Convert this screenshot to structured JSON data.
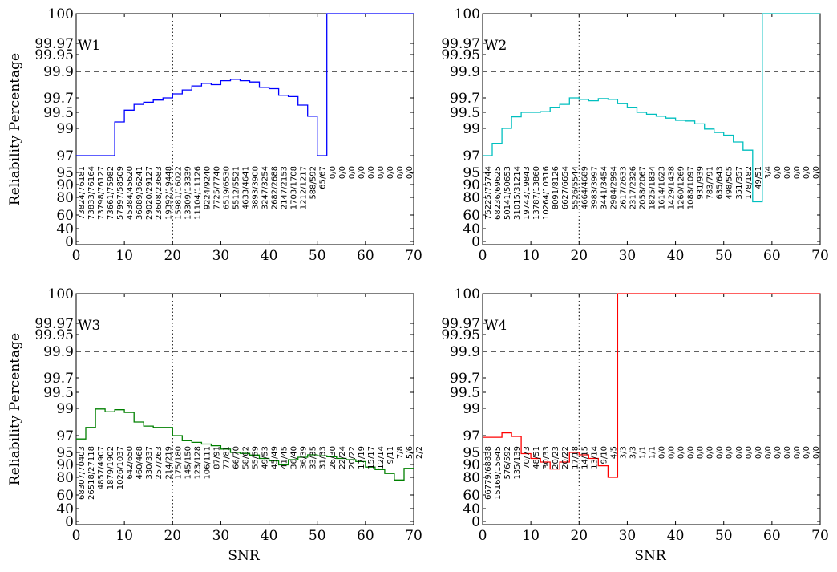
{
  "figure": {
    "ylabel": "Reliability Percentage",
    "xlabel": "SNR"
  },
  "chart_data": [
    {
      "type": "line",
      "step": true,
      "title": "W1",
      "color": "#0000ff",
      "xlabel": "",
      "ylabel": "Reliability Percentage",
      "xlim": [
        0,
        70
      ],
      "xticks": [
        0,
        10,
        20,
        30,
        40,
        50,
        60,
        70
      ],
      "yticks": [
        "0",
        "40",
        "60",
        "80",
        "90",
        "95",
        "97",
        "99",
        "99.5",
        "99.7",
        "99.9",
        "99.95",
        "99.97",
        "100"
      ],
      "reference_lines": {
        "horizontal_dashed": 99.9,
        "vertical_dotted": 20
      },
      "x": [
        0,
        2,
        4,
        6,
        8,
        10,
        12,
        14,
        16,
        18,
        20,
        22,
        24,
        26,
        28,
        30,
        32,
        34,
        36,
        38,
        40,
        42,
        44,
        46,
        48,
        50,
        52,
        54,
        56,
        58,
        60,
        62,
        64,
        66,
        68,
        70
      ],
      "y": [
        97,
        97,
        97,
        97,
        99.2,
        99.53,
        99.61,
        99.64,
        99.67,
        99.7,
        99.73,
        99.76,
        99.79,
        99.81,
        99.8,
        99.83,
        99.84,
        99.83,
        99.82,
        99.78,
        99.77,
        99.72,
        99.71,
        99.6,
        99.38,
        97,
        100,
        100,
        100,
        100,
        100,
        100,
        100,
        100,
        100,
        100
      ],
      "count_labels": [
        "73824/76181",
        "73833/76164",
        "73798/76127",
        "73661/75982",
        "57997/58509",
        "45384/45620",
        "36089/36241",
        "29020/29127",
        "23608/23683",
        "19392/19448",
        "15981/16022",
        "13309/13339",
        "11104/11126",
        "9224/9240",
        "7725/7740",
        "6519/6530",
        "5512/5521",
        "4633/4641",
        "3893/3900",
        "3247/3254",
        "2682/2688",
        "2147/2153",
        "1703/1708",
        "1212/1217",
        "588/592",
        "65/67",
        "0/0",
        "0/0",
        "0/0",
        "0/0",
        "0/0",
        "0/0",
        "0/0",
        "0/0",
        "0/0"
      ]
    },
    {
      "type": "line",
      "step": true,
      "title": "W2",
      "color": "#00bfbf",
      "xlabel": "",
      "ylabel": "",
      "xlim": [
        0,
        70
      ],
      "xticks": [
        0,
        10,
        20,
        30,
        40,
        50,
        60,
        70
      ],
      "yticks": [
        "0",
        "40",
        "60",
        "80",
        "90",
        "95",
        "97",
        "99",
        "99.5",
        "99.7",
        "99.9",
        "99.95",
        "99.97",
        "100"
      ],
      "reference_lines": {
        "horizontal_dashed": 99.9,
        "vertical_dotted": 20
      },
      "x": [
        0,
        2,
        4,
        6,
        8,
        10,
        12,
        14,
        16,
        18,
        20,
        22,
        24,
        26,
        28,
        30,
        32,
        34,
        36,
        38,
        40,
        42,
        44,
        46,
        48,
        50,
        52,
        54,
        56,
        58,
        60,
        62,
        64,
        66,
        68,
        70
      ],
      "y": [
        97,
        97.9,
        99.0,
        99.36,
        99.5,
        99.5,
        99.51,
        99.57,
        99.61,
        99.7,
        99.68,
        99.66,
        99.69,
        99.68,
        99.62,
        99.57,
        99.5,
        99.44,
        99.38,
        99.32,
        99.25,
        99.23,
        99.14,
        98.95,
        98.7,
        98.5,
        98.0,
        97.4,
        75,
        100,
        100,
        100,
        100,
        100,
        100,
        100
      ],
      "count_labels": [
        "75225/75744",
        "68236/69625",
        "50141/50653",
        "31015/31214",
        "19743/19843",
        "13787/13860",
        "10264/10316",
        "8091/8126",
        "6627/6654",
        "5526/5544",
        "4664/4689",
        "3983/3997",
        "3441/3454",
        "2984/2994",
        "2617/2633",
        "2317/2326",
        "2058/2067",
        "1825/1834",
        "1614/1623",
        "1429/1438",
        "1260/1269",
        "1088/1097",
        "931/939",
        "783/791",
        "635/643",
        "498/505",
        "351/357",
        "178/182",
        "49/51",
        "3/4",
        "0/0",
        "0/0",
        "0/0",
        "0/0",
        "0/0"
      ]
    },
    {
      "type": "line",
      "step": true,
      "title": "W3",
      "color": "#008000",
      "xlabel": "SNR",
      "ylabel": "Reliability Percentage",
      "xlim": [
        0,
        70
      ],
      "xticks": [
        0,
        10,
        20,
        30,
        40,
        50,
        60,
        70
      ],
      "yticks": [
        "0",
        "40",
        "60",
        "80",
        "90",
        "95",
        "97",
        "99",
        "99.5",
        "99.7",
        "99.9",
        "99.95",
        "99.97",
        "100"
      ],
      "reference_lines": {
        "horizontal_dashed": 99.9,
        "vertical_dotted": 20
      },
      "x": [
        0,
        2,
        4,
        6,
        8,
        10,
        12,
        14,
        16,
        18,
        20,
        22,
        24,
        26,
        28,
        30,
        32,
        34,
        36,
        38,
        40,
        42,
        44,
        46,
        48,
        50,
        52,
        54,
        56,
        58,
        60,
        62,
        64,
        66,
        68,
        70
      ],
      "y": [
        96.6,
        97.6,
        98.95,
        98.75,
        98.9,
        98.7,
        98.0,
        97.7,
        97.6,
        97.6,
        97.0,
        96.4,
        96.2,
        96.0,
        95.8,
        95.4,
        95.0,
        94.6,
        93.9,
        92.5,
        91.5,
        89.7,
        92.0,
        93.0,
        94.0,
        93.6,
        93.2,
        92.5,
        92.0,
        91.2,
        88.0,
        86.0,
        83.0,
        77.0,
        87.0,
        83.0
      ],
      "count_labels": [
        "68307/70403",
        "26518/27118",
        "4857/4907",
        "1879/1902",
        "1026/1037",
        "642/650",
        "460/468",
        "330/337",
        "257/263",
        "214/219",
        "175/180",
        "145/150",
        "123/128",
        "106/111",
        "87/91",
        "77/81",
        "66/70",
        "58/62",
        "55/59",
        "49/53",
        "45/49",
        "41/45",
        "36/40",
        "36/39",
        "33/35",
        "31/33",
        "26/30",
        "22/24",
        "20/22",
        "17/19",
        "15/17",
        "12/14",
        "9/11",
        "7/8",
        "5/6",
        "2/2"
      ]
    },
    {
      "type": "line",
      "step": true,
      "title": "W4",
      "color": "#ff0000",
      "xlabel": "SNR",
      "ylabel": "",
      "xlim": [
        0,
        70
      ],
      "xticks": [
        0,
        10,
        20,
        30,
        40,
        50,
        60,
        70
      ],
      "yticks": [
        "0",
        "40",
        "60",
        "80",
        "90",
        "95",
        "97",
        "99",
        "99.5",
        "99.7",
        "99.9",
        "99.95",
        "99.97",
        "100"
      ],
      "reference_lines": {
        "horizontal_dashed": 99.9,
        "vertical_dotted": 20
      },
      "x": [
        0,
        2,
        4,
        6,
        8,
        10,
        12,
        14,
        16,
        18,
        20,
        22,
        24,
        26,
        28,
        30,
        32,
        34,
        36,
        38,
        40,
        42,
        44,
        46,
        48,
        50,
        52,
        54,
        56,
        58,
        60,
        62,
        64,
        66,
        68,
        70
      ],
      "y": [
        96.8,
        96.8,
        97.2,
        96.9,
        94.5,
        92.5,
        91.0,
        86.5,
        91.0,
        95.0,
        94.0,
        92.5,
        89.0,
        80.0,
        100,
        100,
        100,
        100,
        100,
        100,
        100,
        100,
        100,
        100,
        100,
        100,
        100,
        100,
        100,
        100,
        100,
        100,
        100,
        100,
        100,
        100
      ],
      "count_labels": [
        "66779/68838",
        "15169/15645",
        "576/592",
        "135/139",
        "70/73",
        "48/51",
        "30/33",
        "20/23",
        "20/22",
        "17/18",
        "14/15",
        "13/14",
        "9/10",
        "4/5",
        "3/3",
        "3/3",
        "1/1",
        "1/1",
        "0/0",
        "0/0",
        "0/0",
        "0/0",
        "0/0",
        "0/0",
        "0/0",
        "0/0",
        "0/0",
        "0/0",
        "0/0",
        "0/0",
        "0/0",
        "0/0",
        "0/0",
        "0/0",
        "0/0"
      ]
    }
  ]
}
